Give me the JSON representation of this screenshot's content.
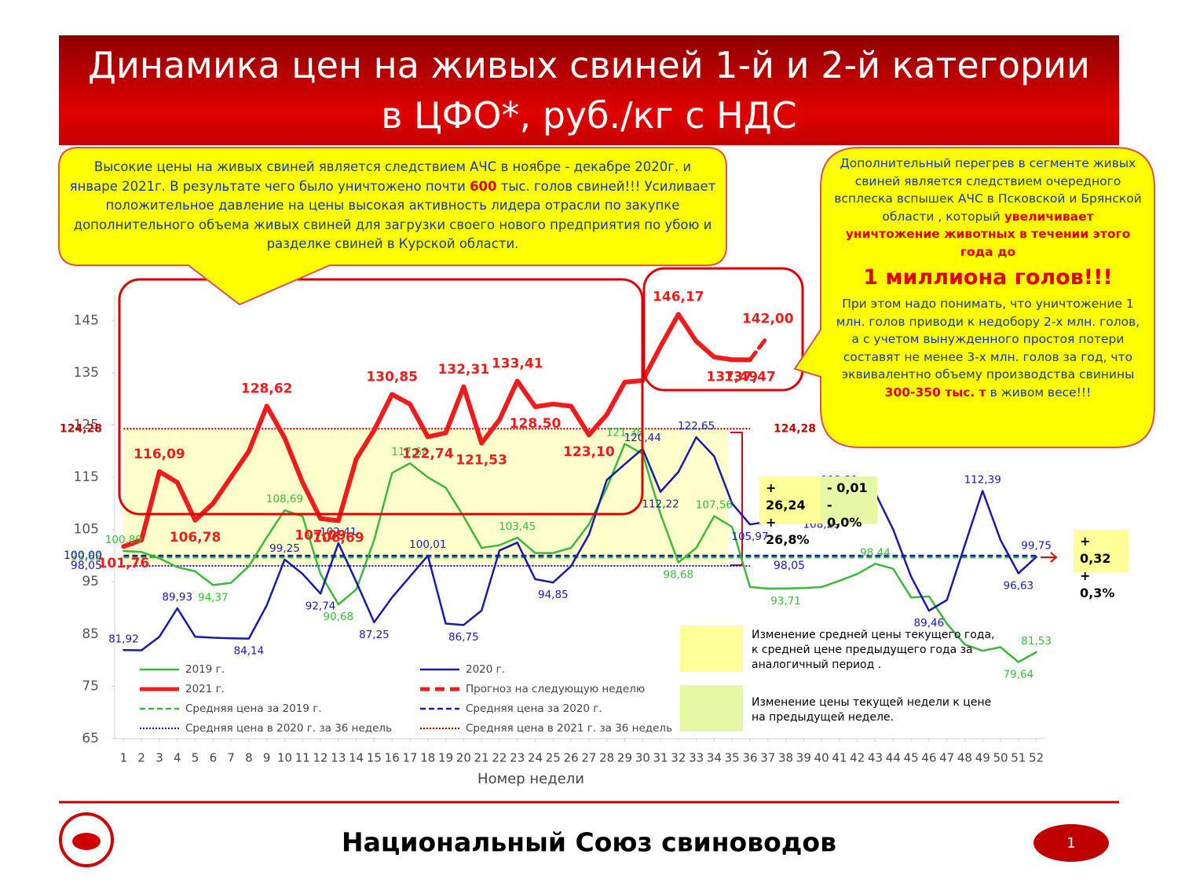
{
  "title": [
    "Динамика цен на живых свиней 1-й и 2-й категории",
    "в ЦФО*, руб./кг с НДС"
  ],
  "callout_left": [
    "Высокие цены на живых свиней является следствием АЧС в ноябре - декабре 2020г. и январе 2021г. В результате чего было уничтожено почти ",
    "600",
    " тыс. голов свиней!!!  Усиливает положительное давление на цены высокая активность лидера отрасли по закупке дополнительного объема живых свиней для загрузки своего нового предприятия  по убою и разделке свиней в Курской области."
  ],
  "callout_right": [
    "Дополнительный перегрев в сегменте живых свиней является следствием очередного всплеска вспышек АЧС в Псковской  и Брянской области , который ",
    "увеличивает уничтожение животных в течении этого года до",
    "1 миллиона голов!!!",
    "При этом надо понимать, что уничтожение 1 млн. голов приводи к недобору 2-х млн. голов, а с учетом вынужденного простоя потери составят не менее 3-х млн. голов за год, что эквивалентно объему производства свинины ",
    "300-350 тыс. т",
    " в живом весе!!!"
  ],
  "change_boxes": [
    [
      "+ 26,24",
      "+ 26,8%"
    ],
    [
      "- 0,01",
      "- 0,0%"
    ],
    [
      "+ 0,32",
      "+ 0,3%"
    ]
  ],
  "notes": [
    "Изменение средней цены текущего года, к средней цене предыдущего года за аналогичный период .",
    "Изменение цены текущей недели к цене на предыдущей неделе."
  ],
  "footer": "Национальный Союз свиноводов",
  "page_number": 1,
  "chart_data": {
    "type": "line",
    "x_label": "Номер недели",
    "x": [
      1,
      2,
      3,
      4,
      5,
      6,
      7,
      8,
      9,
      10,
      11,
      12,
      13,
      14,
      15,
      16,
      17,
      18,
      19,
      20,
      21,
      22,
      23,
      24,
      25,
      26,
      27,
      28,
      29,
      30,
      31,
      32,
      33,
      34,
      35,
      36,
      37,
      38,
      39,
      40,
      41,
      42,
      43,
      44,
      45,
      46,
      47,
      48,
      49,
      50,
      51,
      52
    ],
    "xlim": [
      0.5,
      52.5
    ],
    "xticks": [
      1,
      2,
      3,
      4,
      5,
      6,
      7,
      8,
      9,
      10,
      11,
      12,
      13,
      14,
      15,
      16,
      17,
      18,
      19,
      20,
      21,
      22,
      23,
      24,
      25,
      26,
      27,
      28,
      29,
      30,
      31,
      32,
      33,
      34,
      35,
      36,
      37,
      38,
      39,
      40,
      41,
      42,
      43,
      44,
      45,
      46,
      47,
      48,
      49,
      50,
      51,
      52
    ],
    "ylim": [
      65,
      150
    ],
    "yticks": [
      65,
      75,
      85,
      95,
      105,
      115,
      125,
      135,
      145
    ],
    "grid": false,
    "series": [
      {
        "name": "2019 г.",
        "color": "#3cb93c",
        "style": "solid",
        "values": [
          100.89,
          100.7,
          99.5,
          97.8,
          97.0,
          94.37,
          94.8,
          98.0,
          103.5,
          108.69,
          107.5,
          96.5,
          90.68,
          93.5,
          103.0,
          115.8,
          117.68,
          115.0,
          113.0,
          107.5,
          101.5,
          102.0,
          103.45,
          100.5,
          100.5,
          101.5,
          106.0,
          113.0,
          121.38,
          119.5,
          108.0,
          98.68,
          101.5,
          107.56,
          105.5,
          94.0,
          93.7,
          93.71,
          93.8,
          94.0,
          95.2,
          96.5,
          98.44,
          97.5,
          92.0,
          92.2,
          87.0,
          83.0,
          81.8,
          82.5,
          79.64,
          81.53
        ],
        "value_labels": [
          "100,89",
          null,
          null,
          null,
          null,
          "94,37",
          null,
          null,
          null,
          "108,69",
          null,
          null,
          "90,68",
          null,
          null,
          null,
          "117,68",
          null,
          null,
          null,
          null,
          null,
          "103,45",
          null,
          null,
          null,
          null,
          null,
          "121,38",
          null,
          null,
          "98,68",
          null,
          "107,56",
          null,
          null,
          null,
          "93,71",
          null,
          null,
          null,
          null,
          "98,44",
          null,
          null,
          null,
          null,
          null,
          null,
          null,
          "79,64",
          "81,53"
        ]
      },
      {
        "name": "2020 г.",
        "color": "#1a1aaa",
        "style": "solid",
        "values": [
          81.92,
          81.9,
          84.5,
          89.93,
          84.5,
          84.3,
          84.2,
          84.14,
          90.5,
          99.25,
          96.5,
          92.74,
          102.41,
          95.0,
          87.25,
          92.0,
          96.0,
          100.01,
          87.0,
          86.75,
          89.5,
          101.0,
          102.5,
          95.5,
          94.85,
          98.0,
          104.0,
          114.5,
          117.5,
          120.44,
          112.22,
          116.0,
          122.65,
          119.0,
          110.0,
          105.97,
          106.5,
          111.0,
          111.0,
          108.29,
          112.31,
          112.3,
          112.0,
          105.0,
          96.0,
          89.46,
          91.5,
          102.0,
          112.39,
          103.0,
          96.63,
          99.75
        ],
        "value_labels": [
          "81,92",
          null,
          null,
          "89,93",
          null,
          null,
          null,
          "84,14",
          null,
          "99,25",
          null,
          "92,74",
          "102,41",
          null,
          "87,25",
          null,
          null,
          "100,01",
          null,
          "86,75",
          null,
          null,
          null,
          null,
          "94,85",
          null,
          null,
          null,
          null,
          "120,44",
          "112,22",
          null,
          "122,65",
          null,
          null,
          "105,97",
          null,
          null,
          null,
          "108,29",
          "112,31",
          null,
          null,
          null,
          null,
          "89,46",
          null,
          null,
          "112,39",
          null,
          "96,63",
          "99,75"
        ]
      },
      {
        "name": "2021 г.",
        "color": "#ee1c1c",
        "style": "thick",
        "values": [
          101.76,
          103.0,
          116.09,
          114.0,
          106.78,
          110.0,
          115.0,
          120.0,
          128.62,
          122.5,
          114.0,
          107.09,
          106.69,
          118.5,
          124.0,
          130.85,
          129.0,
          122.74,
          123.5,
          132.31,
          121.53,
          126.0,
          133.41,
          128.5,
          129.0,
          128.6,
          123.1,
          127.0,
          133.2,
          133.5,
          140.0,
          146.17,
          141.0,
          138.0,
          137.49,
          137.47,
          null,
          null,
          null,
          null,
          null,
          null,
          null,
          null,
          null,
          null,
          null,
          null,
          null,
          null,
          null,
          null
        ],
        "value_labels": [
          "101,76",
          null,
          "116,09",
          null,
          "106,78",
          null,
          null,
          null,
          "128,62",
          null,
          null,
          "107,09",
          "106,69",
          null,
          null,
          "130,85",
          null,
          "122,74",
          null,
          "132,31",
          "121,53",
          null,
          "133,41",
          "128,50",
          null,
          null,
          "123,10",
          null,
          null,
          null,
          null,
          "146,17",
          null,
          null,
          "137,49",
          "137,47",
          null,
          null,
          null,
          null,
          null,
          null,
          null,
          null,
          null,
          null,
          null,
          null,
          null,
          null,
          null,
          null
        ]
      },
      {
        "name": "Прогноз на следующую неделю",
        "color": "#ee1c1c",
        "style": "thick-dashed",
        "values": [
          null,
          null,
          null,
          null,
          null,
          null,
          null,
          null,
          null,
          null,
          null,
          null,
          null,
          null,
          null,
          null,
          null,
          null,
          null,
          null,
          null,
          null,
          null,
          null,
          null,
          null,
          null,
          null,
          null,
          null,
          null,
          null,
          null,
          null,
          null,
          137.47,
          142.0,
          null,
          null,
          null,
          null,
          null,
          null,
          null,
          null,
          null,
          null,
          null,
          null,
          null,
          null,
          null
        ],
        "value_labels": [
          null,
          null,
          null,
          null,
          null,
          null,
          null,
          null,
          null,
          null,
          null,
          null,
          null,
          null,
          null,
          null,
          null,
          null,
          null,
          null,
          null,
          null,
          null,
          null,
          null,
          null,
          null,
          null,
          null,
          null,
          null,
          null,
          null,
          null,
          null,
          null,
          "142,00",
          null,
          null,
          null,
          null,
          null,
          null,
          null,
          null,
          null,
          null,
          null,
          null,
          null,
          null,
          null
        ]
      },
      {
        "name": "Средняя цена за 2019 г.",
        "color": "#3cb93c",
        "style": "dashed",
        "value": 99.68,
        "weeks": [
          1,
          52
        ],
        "value_label": "99,68",
        "label_sides": [
          "left"
        ]
      },
      {
        "name": "Средняя цена за 2020 г.",
        "color": "#1a1aaa",
        "style": "dashed",
        "value": 100.0,
        "weeks": [
          1,
          52
        ],
        "value_label": "100,00",
        "label_sides": [
          "left"
        ]
      },
      {
        "name": "Средняя цена в 2020 г. за 36 недель",
        "color": "#1a1aaa",
        "style": "dotted",
        "value": 98.05,
        "weeks": [
          1,
          36
        ],
        "value_label": "98,05",
        "label_sides": [
          "left",
          "right"
        ]
      },
      {
        "name": "Средняя цена в 2021 г. за 36 недель",
        "color": "#c00000",
        "style": "dotted",
        "value": 124.28,
        "weeks": [
          1,
          36
        ],
        "value_label": "124,28",
        "label_sides": [
          "left",
          "right"
        ]
      }
    ]
  }
}
